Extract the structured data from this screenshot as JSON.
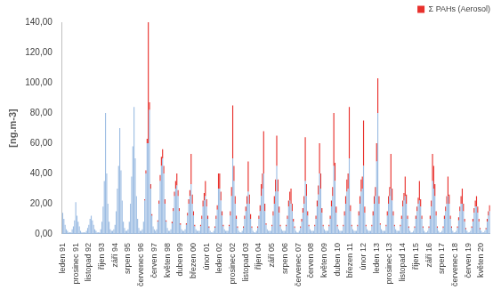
{
  "chart_data": {
    "type": "bar",
    "y_label": "[ng.m-3]",
    "stacked": true,
    "grid": false,
    "legend": "top-right",
    "ylim": [
      0,
      140
    ],
    "yticks": [
      {
        "value": 0,
        "label": "0,00"
      },
      {
        "value": 20,
        "label": "20,00"
      },
      {
        "value": 40,
        "label": "40,00"
      },
      {
        "value": 60,
        "label": "60,00"
      },
      {
        "value": 80,
        "label": "80,00"
      },
      {
        "value": 100,
        "label": "100,00"
      },
      {
        "value": 120,
        "label": "120,00"
      },
      {
        "value": 140,
        "label": "140,00"
      }
    ],
    "categories": [
      "leden 91",
      null,
      null,
      null,
      null,
      null,
      null,
      null,
      null,
      null,
      null,
      "prosinec 91",
      null,
      null,
      null,
      null,
      null,
      null,
      null,
      null,
      null,
      null,
      "listopad 92",
      null,
      null,
      null,
      null,
      null,
      null,
      null,
      null,
      null,
      null,
      "říjen 93",
      null,
      null,
      null,
      null,
      null,
      null,
      null,
      null,
      null,
      null,
      "září 94",
      null,
      null,
      null,
      null,
      null,
      null,
      null,
      null,
      null,
      null,
      "srpen 95",
      null,
      null,
      null,
      null,
      null,
      null,
      null,
      null,
      null,
      null,
      "červenec 96",
      null,
      null,
      null,
      null,
      null,
      null,
      null,
      null,
      null,
      null,
      "červen 97",
      null,
      null,
      null,
      null,
      null,
      null,
      null,
      null,
      null,
      null,
      "květen 98",
      null,
      null,
      null,
      null,
      null,
      null,
      null,
      null,
      null,
      null,
      "duben 99",
      null,
      null,
      null,
      null,
      null,
      null,
      null,
      null,
      null,
      null,
      "březen 00",
      null,
      null,
      null,
      null,
      null,
      null,
      null,
      null,
      null,
      null,
      "únor 01",
      null,
      null,
      null,
      null,
      null,
      null,
      null,
      null,
      null,
      null,
      "leden 02",
      null,
      null,
      null,
      null,
      null,
      null,
      null,
      null,
      null,
      null,
      "prosinec 02",
      null,
      null,
      null,
      null,
      null,
      null,
      null,
      null,
      null,
      null,
      "listopad 03",
      null,
      null,
      null,
      null,
      null,
      null,
      null,
      null,
      null,
      null,
      "říjen 04",
      null,
      null,
      null,
      null,
      null,
      null,
      null,
      null,
      null,
      null,
      "září 05",
      null,
      null,
      null,
      null,
      null,
      null,
      null,
      null,
      null,
      null,
      "srpen 06",
      null,
      null,
      null,
      null,
      null,
      null,
      null,
      null,
      null,
      null,
      "červenec 07",
      null,
      null,
      null,
      null,
      null,
      null,
      null,
      null,
      null,
      null,
      "červen 08",
      null,
      null,
      null,
      null,
      null,
      null,
      null,
      null,
      null,
      null,
      "květen 09",
      null,
      null,
      null,
      null,
      null,
      null,
      null,
      null,
      null,
      null,
      "duben 10",
      null,
      null,
      null,
      null,
      null,
      null,
      null,
      null,
      null,
      null,
      "březen 11",
      null,
      null,
      null,
      null,
      null,
      null,
      null,
      null,
      null,
      null,
      "únor 12",
      null,
      null,
      null,
      null,
      null,
      null,
      null,
      null,
      null,
      null,
      "leden 13",
      null,
      null,
      null,
      null,
      null,
      null,
      null,
      null,
      null,
      null,
      "prosinec 13",
      null,
      null,
      null,
      null,
      null,
      null,
      null,
      null,
      null,
      null,
      "listopad 14",
      null,
      null,
      null,
      null,
      null,
      null,
      null,
      null,
      null,
      null,
      "říjen 15",
      null,
      null,
      null,
      null,
      null,
      null,
      null,
      null,
      null,
      null,
      "září 16",
      null,
      null,
      null,
      null,
      null,
      null,
      null,
      null,
      null,
      null,
      "srpen 17",
      null,
      null,
      null,
      null,
      null,
      null,
      null,
      null,
      null,
      null,
      "červenec 18",
      null,
      null,
      null,
      null,
      null,
      null,
      null,
      null,
      null,
      null,
      "červen 19",
      null,
      null,
      null,
      null,
      null,
      null,
      null,
      null,
      null,
      null,
      "květen 20",
      null,
      null,
      null,
      null,
      null,
      null,
      null
    ],
    "series": [
      {
        "color": "#9dbde3",
        "values": [
          14,
          10,
          6,
          3,
          2,
          1,
          1,
          1,
          3,
          5,
          9,
          21,
          12,
          8,
          5,
          2,
          1,
          1,
          1,
          1,
          2,
          4,
          6,
          10,
          12,
          9,
          6,
          3,
          2,
          1,
          1,
          1,
          3,
          8,
          18,
          35,
          80,
          40,
          20,
          8,
          3,
          2,
          2,
          3,
          6,
          15,
          30,
          45,
          70,
          42,
          22,
          8,
          4,
          2,
          2,
          3,
          8,
          20,
          38,
          58,
          84,
          50,
          25,
          10,
          4,
          2,
          2,
          3,
          8,
          22,
          40,
          60,
          60,
          82,
          30,
          12,
          5,
          3,
          2,
          3,
          8,
          20,
          35,
          45,
          50,
          40,
          20,
          8,
          4,
          2,
          2,
          3,
          7,
          15,
          25,
          30,
          32,
          25,
          15,
          6,
          3,
          2,
          2,
          3,
          6,
          12,
          20,
          25,
          33,
          20,
          12,
          5,
          3,
          2,
          2,
          2,
          5,
          10,
          18,
          22,
          25,
          18,
          10,
          4,
          2,
          1,
          1,
          2,
          4,
          10,
          16,
          30,
          30,
          22,
          12,
          5,
          3,
          2,
          2,
          2,
          5,
          12,
          25,
          50,
          35,
          20,
          10,
          4,
          2,
          1,
          1,
          2,
          4,
          10,
          15,
          20,
          28,
          20,
          10,
          4,
          2,
          1,
          1,
          2,
          4,
          10,
          15,
          25,
          30,
          40,
          15,
          6,
          3,
          2,
          2,
          2,
          5,
          12,
          20,
          28,
          45,
          28,
          14,
          5,
          3,
          2,
          2,
          2,
          5,
          10,
          18,
          22,
          20,
          15,
          8,
          4,
          2,
          1,
          1,
          2,
          4,
          8,
          14,
          20,
          35,
          25,
          12,
          5,
          3,
          2,
          2,
          2,
          5,
          10,
          18,
          26,
          40,
          30,
          14,
          5,
          3,
          2,
          2,
          2,
          5,
          10,
          18,
          25,
          45,
          35,
          14,
          5,
          3,
          2,
          2,
          2,
          5,
          12,
          20,
          28,
          30,
          50,
          15,
          5,
          3,
          2,
          2,
          2,
          5,
          12,
          20,
          28,
          30,
          45,
          14,
          5,
          3,
          2,
          2,
          2,
          5,
          12,
          20,
          25,
          48,
          80,
          20,
          6,
          3,
          2,
          2,
          2,
          5,
          12,
          20,
          25,
          30,
          22,
          12,
          5,
          3,
          2,
          2,
          2,
          5,
          10,
          18,
          22,
          25,
          20,
          10,
          4,
          2,
          1,
          1,
          2,
          4,
          10,
          15,
          20,
          22,
          18,
          10,
          4,
          2,
          1,
          1,
          2,
          4,
          10,
          18,
          35,
          30,
          25,
          12,
          4,
          2,
          1,
          1,
          2,
          4,
          10,
          15,
          20,
          25,
          20,
          10,
          4,
          2,
          1,
          1,
          2,
          4,
          9,
          15,
          20,
          20,
          15,
          8,
          3,
          2,
          1,
          1,
          2,
          4,
          8,
          14,
          18,
          18,
          14,
          8,
          3,
          2,
          1,
          1,
          2,
          3,
          8,
          12,
          15
        ]
      },
      {
        "name": "Σ PAHs (Aerosol)",
        "color": "#e8302c",
        "values": [
          0,
          0,
          0,
          0,
          0,
          0,
          0,
          0,
          0,
          0,
          0,
          0,
          0,
          0,
          0,
          0,
          0,
          0,
          0,
          0,
          0,
          0,
          0,
          0,
          0,
          0,
          0,
          0,
          0,
          0,
          0,
          0,
          0,
          0,
          0,
          0,
          0,
          0,
          0,
          0,
          0,
          0,
          0,
          0,
          0,
          0,
          0,
          0,
          0,
          0,
          0,
          0,
          0,
          0,
          0,
          0,
          0,
          0,
          0,
          0,
          0,
          0,
          0,
          0,
          0,
          0,
          0,
          0,
          0,
          1,
          2,
          3,
          80,
          5,
          3,
          1,
          0,
          0,
          0,
          0,
          1,
          2,
          4,
          6,
          6,
          5,
          3,
          1,
          0,
          0,
          0,
          0,
          1,
          2,
          3,
          5,
          8,
          4,
          2,
          1,
          0,
          0,
          0,
          0,
          1,
          2,
          3,
          4,
          20,
          6,
          3,
          1,
          0,
          0,
          0,
          0,
          1,
          2,
          4,
          5,
          10,
          5,
          2,
          1,
          0,
          0,
          0,
          0,
          1,
          2,
          3,
          10,
          10,
          6,
          3,
          1,
          0,
          0,
          0,
          0,
          1,
          3,
          6,
          35,
          10,
          5,
          2,
          1,
          0,
          0,
          0,
          0,
          1,
          2,
          3,
          5,
          20,
          6,
          3,
          1,
          0,
          0,
          0,
          0,
          1,
          2,
          4,
          8,
          10,
          28,
          5,
          1,
          0,
          0,
          0,
          0,
          1,
          3,
          5,
          8,
          20,
          8,
          4,
          1,
          0,
          0,
          0,
          0,
          1,
          2,
          4,
          6,
          10,
          5,
          2,
          1,
          0,
          0,
          0,
          0,
          1,
          2,
          3,
          5,
          29,
          8,
          3,
          1,
          0,
          0,
          0,
          0,
          1,
          2,
          4,
          6,
          20,
          10,
          3,
          1,
          0,
          0,
          0,
          0,
          1,
          2,
          4,
          6,
          35,
          12,
          4,
          1,
          0,
          0,
          0,
          0,
          1,
          3,
          5,
          8,
          10,
          34,
          4,
          1,
          0,
          0,
          0,
          0,
          1,
          3,
          5,
          8,
          8,
          30,
          4,
          1,
          0,
          0,
          0,
          0,
          1,
          3,
          5,
          6,
          12,
          23,
          5,
          1,
          0,
          0,
          0,
          0,
          1,
          3,
          5,
          6,
          23,
          8,
          3,
          1,
          0,
          0,
          0,
          0,
          1,
          2,
          4,
          5,
          13,
          6,
          2,
          1,
          0,
          0,
          0,
          0,
          1,
          2,
          3,
          4,
          13,
          5,
          2,
          1,
          0,
          0,
          0,
          0,
          1,
          2,
          4,
          18,
          15,
          8,
          3,
          1,
          0,
          0,
          0,
          0,
          1,
          2,
          3,
          5,
          13,
          6,
          2,
          1,
          0,
          0,
          0,
          0,
          1,
          2,
          3,
          5,
          10,
          5,
          2,
          1,
          0,
          0,
          0,
          0,
          1,
          2,
          3,
          4,
          7,
          4,
          2,
          1,
          0,
          0,
          0,
          0,
          1,
          2,
          3,
          4
        ]
      }
    ]
  }
}
